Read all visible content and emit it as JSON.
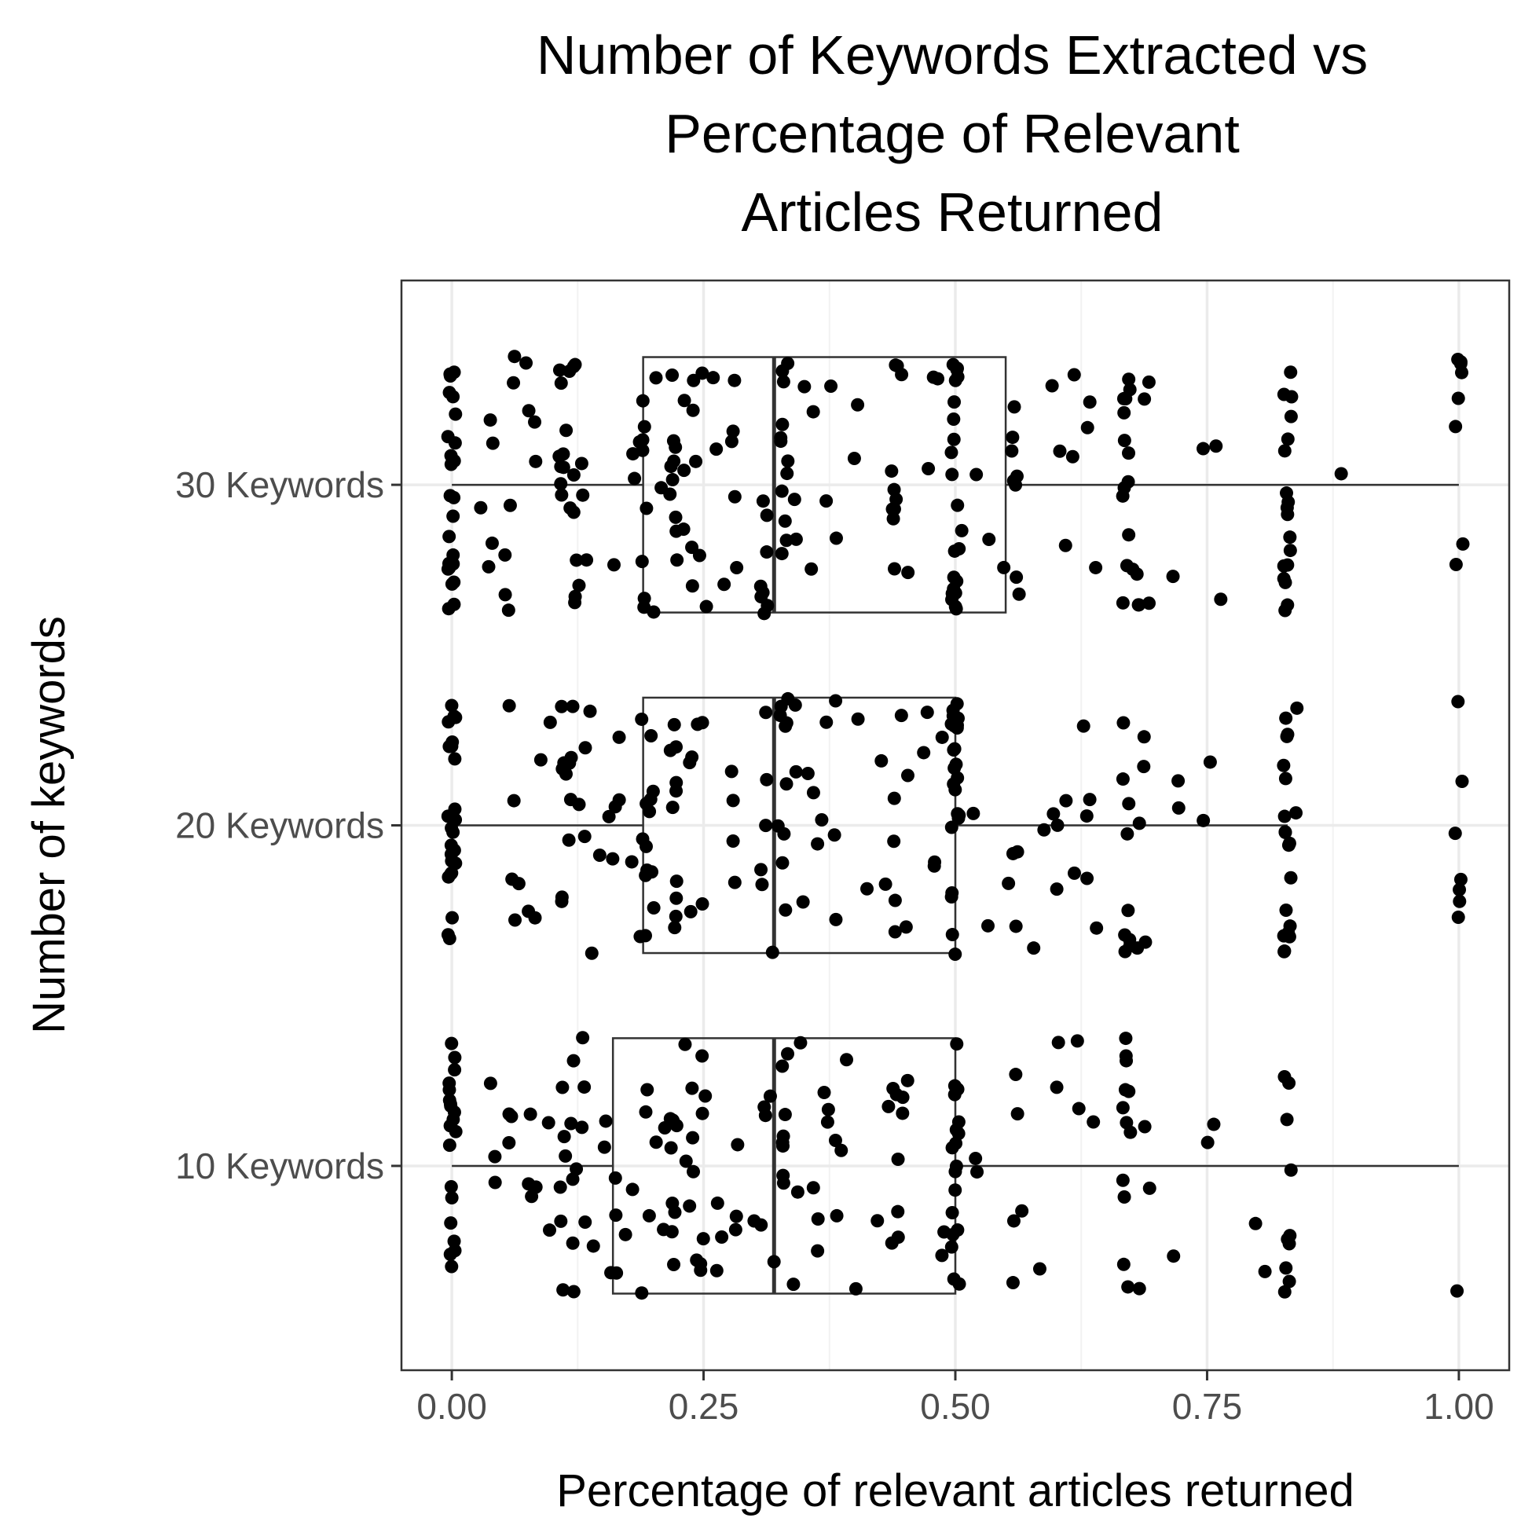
{
  "chart_data": {
    "type": "boxplot",
    "orientation": "horizontal",
    "title": [
      "Number of Keywords Extracted vs",
      "Percentage of Relevant",
      "Articles Returned"
    ],
    "xlabel": "Percentage of relevant articles returned",
    "ylabel": "Number of keywords",
    "xlim": [
      -0.05,
      1.05
    ],
    "x_ticks": [
      0,
      0.25,
      0.5,
      0.75,
      1
    ],
    "x_tick_labels": [
      "0.00",
      "0.25",
      "0.50",
      "0.75",
      "1.00"
    ],
    "x_minor_ticks": [
      0.125,
      0.375,
      0.625,
      0.875
    ],
    "grid": true,
    "theme": "bw",
    "categories": [
      "10 Keywords",
      "20 Keywords",
      "30 Keywords"
    ],
    "boxes": [
      {
        "category": "10 Keywords",
        "min": 0.0,
        "q1": 0.16,
        "median": 0.32,
        "q3": 0.5,
        "max": 1.0
      },
      {
        "category": "20 Keywords",
        "min": 0.0,
        "q1": 0.19,
        "median": 0.32,
        "q3": 0.5,
        "max": 0.83
      },
      {
        "category": "30 Keywords",
        "min": 0.0,
        "q1": 0.19,
        "median": 0.32,
        "q3": 0.55,
        "max": 1.0
      }
    ],
    "jitter_points": {
      "10 Keywords": [
        0.0,
        0.0,
        0.0,
        0.0,
        0.0,
        0.0,
        0.0,
        0.0,
        0.0,
        0.0,
        0.0,
        0.0,
        0.0,
        0.0,
        0.0,
        0.0,
        0.0,
        0.0,
        0.0,
        0.0,
        0.04,
        0.04,
        0.04,
        0.06,
        0.06,
        0.06,
        0.08,
        0.08,
        0.08,
        0.08,
        0.1,
        0.1,
        0.11,
        0.11,
        0.11,
        0.11,
        0.11,
        0.11,
        0.12,
        0.12,
        0.12,
        0.12,
        0.12,
        0.12,
        0.13,
        0.13,
        0.13,
        0.13,
        0.14,
        0.15,
        0.15,
        0.16,
        0.16,
        0.16,
        0.16,
        0.17,
        0.18,
        0.19,
        0.19,
        0.19,
        0.2,
        0.2,
        0.21,
        0.21,
        0.22,
        0.22,
        0.22,
        0.22,
        0.22,
        0.22,
        0.22,
        0.22,
        0.22,
        0.23,
        0.23,
        0.24,
        0.24,
        0.24,
        0.24,
        0.24,
        0.25,
        0.25,
        0.25,
        0.25,
        0.25,
        0.25,
        0.26,
        0.26,
        0.27,
        0.28,
        0.28,
        0.28,
        0.3,
        0.31,
        0.31,
        0.31,
        0.32,
        0.32,
        0.33,
        0.33,
        0.33,
        0.33,
        0.33,
        0.33,
        0.33,
        0.33,
        0.34,
        0.34,
        0.35,
        0.36,
        0.36,
        0.36,
        0.37,
        0.37,
        0.37,
        0.38,
        0.38,
        0.39,
        0.39,
        0.4,
        0.42,
        0.43,
        0.44,
        0.44,
        0.44,
        0.44,
        0.44,
        0.44,
        0.45,
        0.45,
        0.45,
        0.49,
        0.49,
        0.5,
        0.5,
        0.5,
        0.5,
        0.5,
        0.5,
        0.5,
        0.5,
        0.5,
        0.5,
        0.5,
        0.5,
        0.5,
        0.5,
        0.5,
        0.5,
        0.5,
        0.5,
        0.52,
        0.52,
        0.56,
        0.56,
        0.56,
        0.56,
        0.57,
        0.58,
        0.6,
        0.6,
        0.62,
        0.62,
        0.64,
        0.67,
        0.67,
        0.67,
        0.67,
        0.67,
        0.67,
        0.67,
        0.67,
        0.67,
        0.67,
        0.67,
        0.67,
        0.68,
        0.69,
        0.69,
        0.72,
        0.75,
        0.76,
        0.8,
        0.81,
        0.83,
        0.83,
        0.83,
        0.83,
        0.83,
        0.83,
        0.83,
        0.83,
        0.83,
        0.83,
        1.0
      ],
      "20 Keywords": [
        0.0,
        0.0,
        0.0,
        0.0,
        0.0,
        0.0,
        0.0,
        0.0,
        0.0,
        0.0,
        0.0,
        0.0,
        0.0,
        0.0,
        0.0,
        0.0,
        0.0,
        0.0,
        0.0,
        0.0,
        0.0,
        0.0,
        0.0,
        0.0,
        0.0,
        0.06,
        0.06,
        0.06,
        0.06,
        0.07,
        0.08,
        0.08,
        0.09,
        0.1,
        0.11,
        0.11,
        0.11,
        0.11,
        0.11,
        0.11,
        0.12,
        0.12,
        0.12,
        0.12,
        0.12,
        0.13,
        0.13,
        0.13,
        0.14,
        0.14,
        0.15,
        0.16,
        0.16,
        0.16,
        0.17,
        0.17,
        0.18,
        0.19,
        0.19,
        0.19,
        0.19,
        0.19,
        0.19,
        0.19,
        0.19,
        0.2,
        0.2,
        0.2,
        0.2,
        0.2,
        0.2,
        0.22,
        0.22,
        0.22,
        0.22,
        0.22,
        0.22,
        0.22,
        0.22,
        0.22,
        0.22,
        0.24,
        0.24,
        0.24,
        0.24,
        0.25,
        0.25,
        0.28,
        0.28,
        0.28,
        0.28,
        0.31,
        0.31,
        0.31,
        0.31,
        0.31,
        0.32,
        0.32,
        0.33,
        0.33,
        0.33,
        0.33,
        0.33,
        0.33,
        0.33,
        0.33,
        0.33,
        0.34,
        0.34,
        0.35,
        0.35,
        0.36,
        0.36,
        0.37,
        0.37,
        0.38,
        0.38,
        0.38,
        0.4,
        0.41,
        0.43,
        0.43,
        0.44,
        0.44,
        0.44,
        0.44,
        0.45,
        0.45,
        0.45,
        0.47,
        0.47,
        0.48,
        0.48,
        0.49,
        0.5,
        0.5,
        0.5,
        0.5,
        0.5,
        0.5,
        0.5,
        0.5,
        0.5,
        0.5,
        0.5,
        0.5,
        0.5,
        0.5,
        0.5,
        0.5,
        0.5,
        0.5,
        0.5,
        0.5,
        0.5,
        0.5,
        0.5,
        0.52,
        0.53,
        0.55,
        0.56,
        0.56,
        0.56,
        0.58,
        0.59,
        0.6,
        0.6,
        0.6,
        0.61,
        0.62,
        0.63,
        0.63,
        0.63,
        0.63,
        0.64,
        0.67,
        0.67,
        0.67,
        0.67,
        0.67,
        0.67,
        0.67,
        0.67,
        0.67,
        0.68,
        0.68,
        0.69,
        0.69,
        0.69,
        0.72,
        0.72,
        0.75,
        0.75,
        0.83,
        0.83,
        0.83,
        0.83,
        0.83,
        0.83,
        0.83,
        0.83,
        0.83,
        0.83,
        0.83,
        0.83,
        0.83,
        0.83,
        0.83,
        0.83,
        0.83,
        0.83,
        0.84,
        0.84,
        1.0,
        1.0,
        1.0,
        1.0,
        1.0,
        1.0,
        1.0
      ],
      "30 Keywords": [
        0.0,
        0.0,
        0.0,
        0.0,
        0.0,
        0.0,
        0.0,
        0.0,
        0.0,
        0.0,
        0.0,
        0.0,
        0.0,
        0.0,
        0.0,
        0.0,
        0.0,
        0.0,
        0.0,
        0.0,
        0.0,
        0.0,
        0.0,
        0.0,
        0.03,
        0.04,
        0.04,
        0.04,
        0.04,
        0.05,
        0.05,
        0.06,
        0.06,
        0.06,
        0.06,
        0.07,
        0.08,
        0.08,
        0.08,
        0.11,
        0.11,
        0.11,
        0.11,
        0.11,
        0.11,
        0.11,
        0.11,
        0.11,
        0.12,
        0.12,
        0.12,
        0.12,
        0.12,
        0.12,
        0.12,
        0.12,
        0.12,
        0.13,
        0.13,
        0.13,
        0.13,
        0.16,
        0.18,
        0.18,
        0.19,
        0.19,
        0.19,
        0.19,
        0.19,
        0.19,
        0.19,
        0.19,
        0.19,
        0.2,
        0.2,
        0.21,
        0.22,
        0.22,
        0.22,
        0.22,
        0.22,
        0.22,
        0.22,
        0.22,
        0.22,
        0.22,
        0.23,
        0.23,
        0.23,
        0.24,
        0.24,
        0.24,
        0.24,
        0.24,
        0.25,
        0.25,
        0.25,
        0.26,
        0.26,
        0.27,
        0.28,
        0.28,
        0.28,
        0.28,
        0.28,
        0.31,
        0.31,
        0.31,
        0.31,
        0.31,
        0.31,
        0.31,
        0.31,
        0.33,
        0.33,
        0.33,
        0.33,
        0.33,
        0.33,
        0.33,
        0.33,
        0.33,
        0.33,
        0.33,
        0.33,
        0.34,
        0.34,
        0.35,
        0.36,
        0.36,
        0.37,
        0.38,
        0.38,
        0.4,
        0.4,
        0.44,
        0.44,
        0.44,
        0.44,
        0.44,
        0.44,
        0.44,
        0.44,
        0.44,
        0.45,
        0.45,
        0.47,
        0.48,
        0.48,
        0.5,
        0.5,
        0.5,
        0.5,
        0.5,
        0.5,
        0.5,
        0.5,
        0.5,
        0.5,
        0.5,
        0.5,
        0.5,
        0.5,
        0.5,
        0.5,
        0.5,
        0.5,
        0.5,
        0.5,
        0.5,
        0.51,
        0.52,
        0.53,
        0.55,
        0.56,
        0.56,
        0.56,
        0.56,
        0.56,
        0.56,
        0.56,
        0.56,
        0.6,
        0.6,
        0.61,
        0.62,
        0.62,
        0.63,
        0.63,
        0.64,
        0.67,
        0.67,
        0.67,
        0.67,
        0.67,
        0.67,
        0.67,
        0.67,
        0.67,
        0.67,
        0.67,
        0.67,
        0.67,
        0.68,
        0.68,
        0.68,
        0.68,
        0.69,
        0.69,
        0.69,
        0.72,
        0.75,
        0.76,
        0.76,
        0.83,
        0.83,
        0.83,
        0.83,
        0.83,
        0.83,
        0.83,
        0.83,
        0.83,
        0.83,
        0.83,
        0.83,
        0.83,
        0.83,
        0.83,
        0.83,
        0.83,
        0.83,
        0.88,
        1.0,
        1.0,
        1.0,
        1.0,
        1.0,
        1.0,
        1.0,
        1.0
      ]
    }
  },
  "colors": {
    "points": "#000000",
    "box_line": "#333333",
    "panel_border": "#333333",
    "grid_major": "#ebebeb",
    "grid_minor": "#f2f2f2",
    "tick_label": "#4d4d4d",
    "background": "#ffffff"
  }
}
